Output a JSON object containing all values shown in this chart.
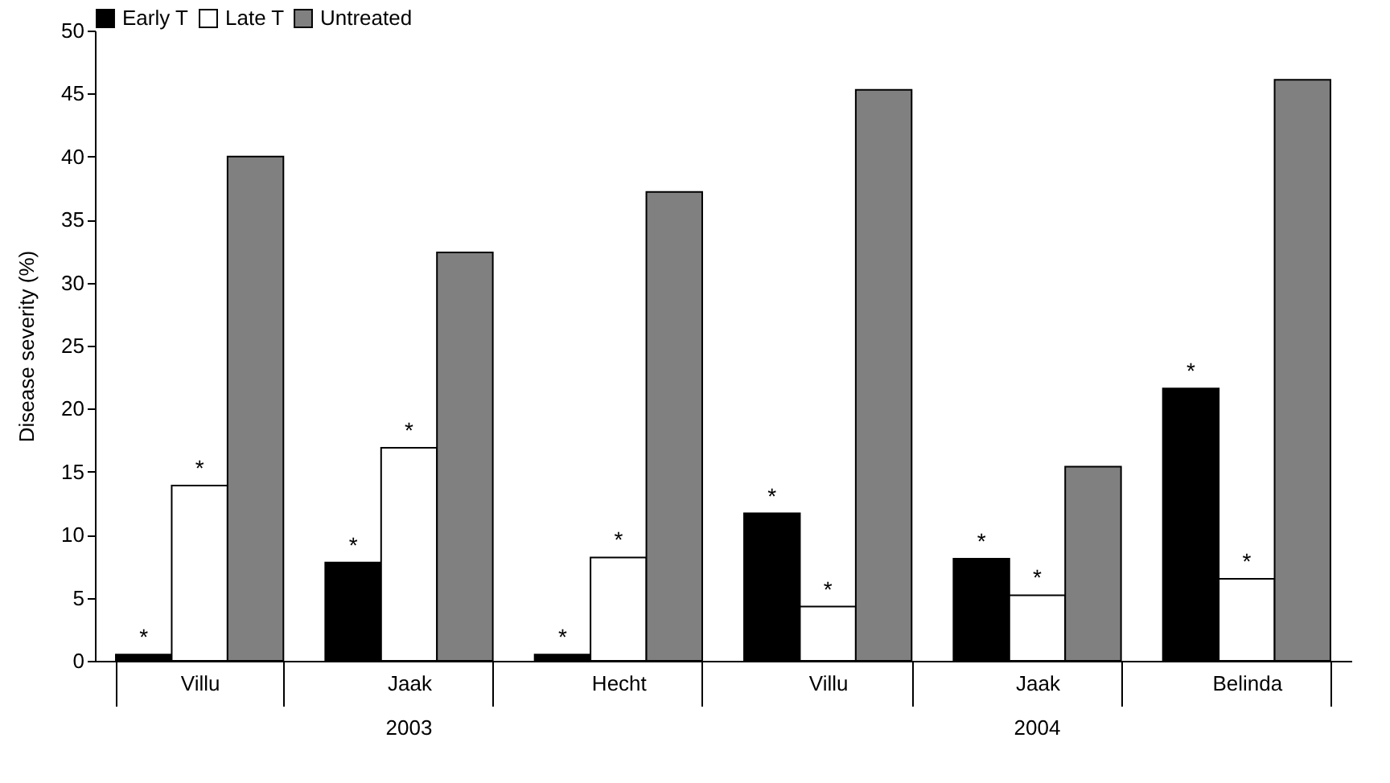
{
  "chart_data": {
    "type": "bar",
    "ylabel": "Disease severity (%)",
    "categories": [
      "Villu",
      "Jaak",
      "Hecht",
      "Villu",
      "Jaak",
      "Belinda"
    ],
    "series": [
      {
        "name": "Early T",
        "color": "#000000",
        "values": [
          0.5,
          7.8,
          0.5,
          11.7,
          8.1,
          21.6
        ],
        "value_labels": [
          "*",
          "*",
          "*",
          "*",
          "*",
          "*"
        ]
      },
      {
        "name": "Late T",
        "color": "#ffffff",
        "values": [
          13.9,
          16.9,
          8.2,
          4.3,
          5.2,
          6.5
        ],
        "value_labels": [
          "*",
          "*",
          "*",
          "*",
          "*",
          "*"
        ]
      },
      {
        "name": "Untreated",
        "color": "#808080",
        "values": [
          40,
          32.4,
          37.2,
          45.3,
          15.4,
          46.1
        ]
      }
    ],
    "annotations": [
      "2003",
      "2004"
    ],
    "ylim": [
      0,
      50
    ],
    "yticks": [
      0,
      5,
      10,
      15,
      20,
      25,
      30,
      35,
      40,
      45,
      50
    ],
    "grid": false,
    "legend": "top"
  }
}
